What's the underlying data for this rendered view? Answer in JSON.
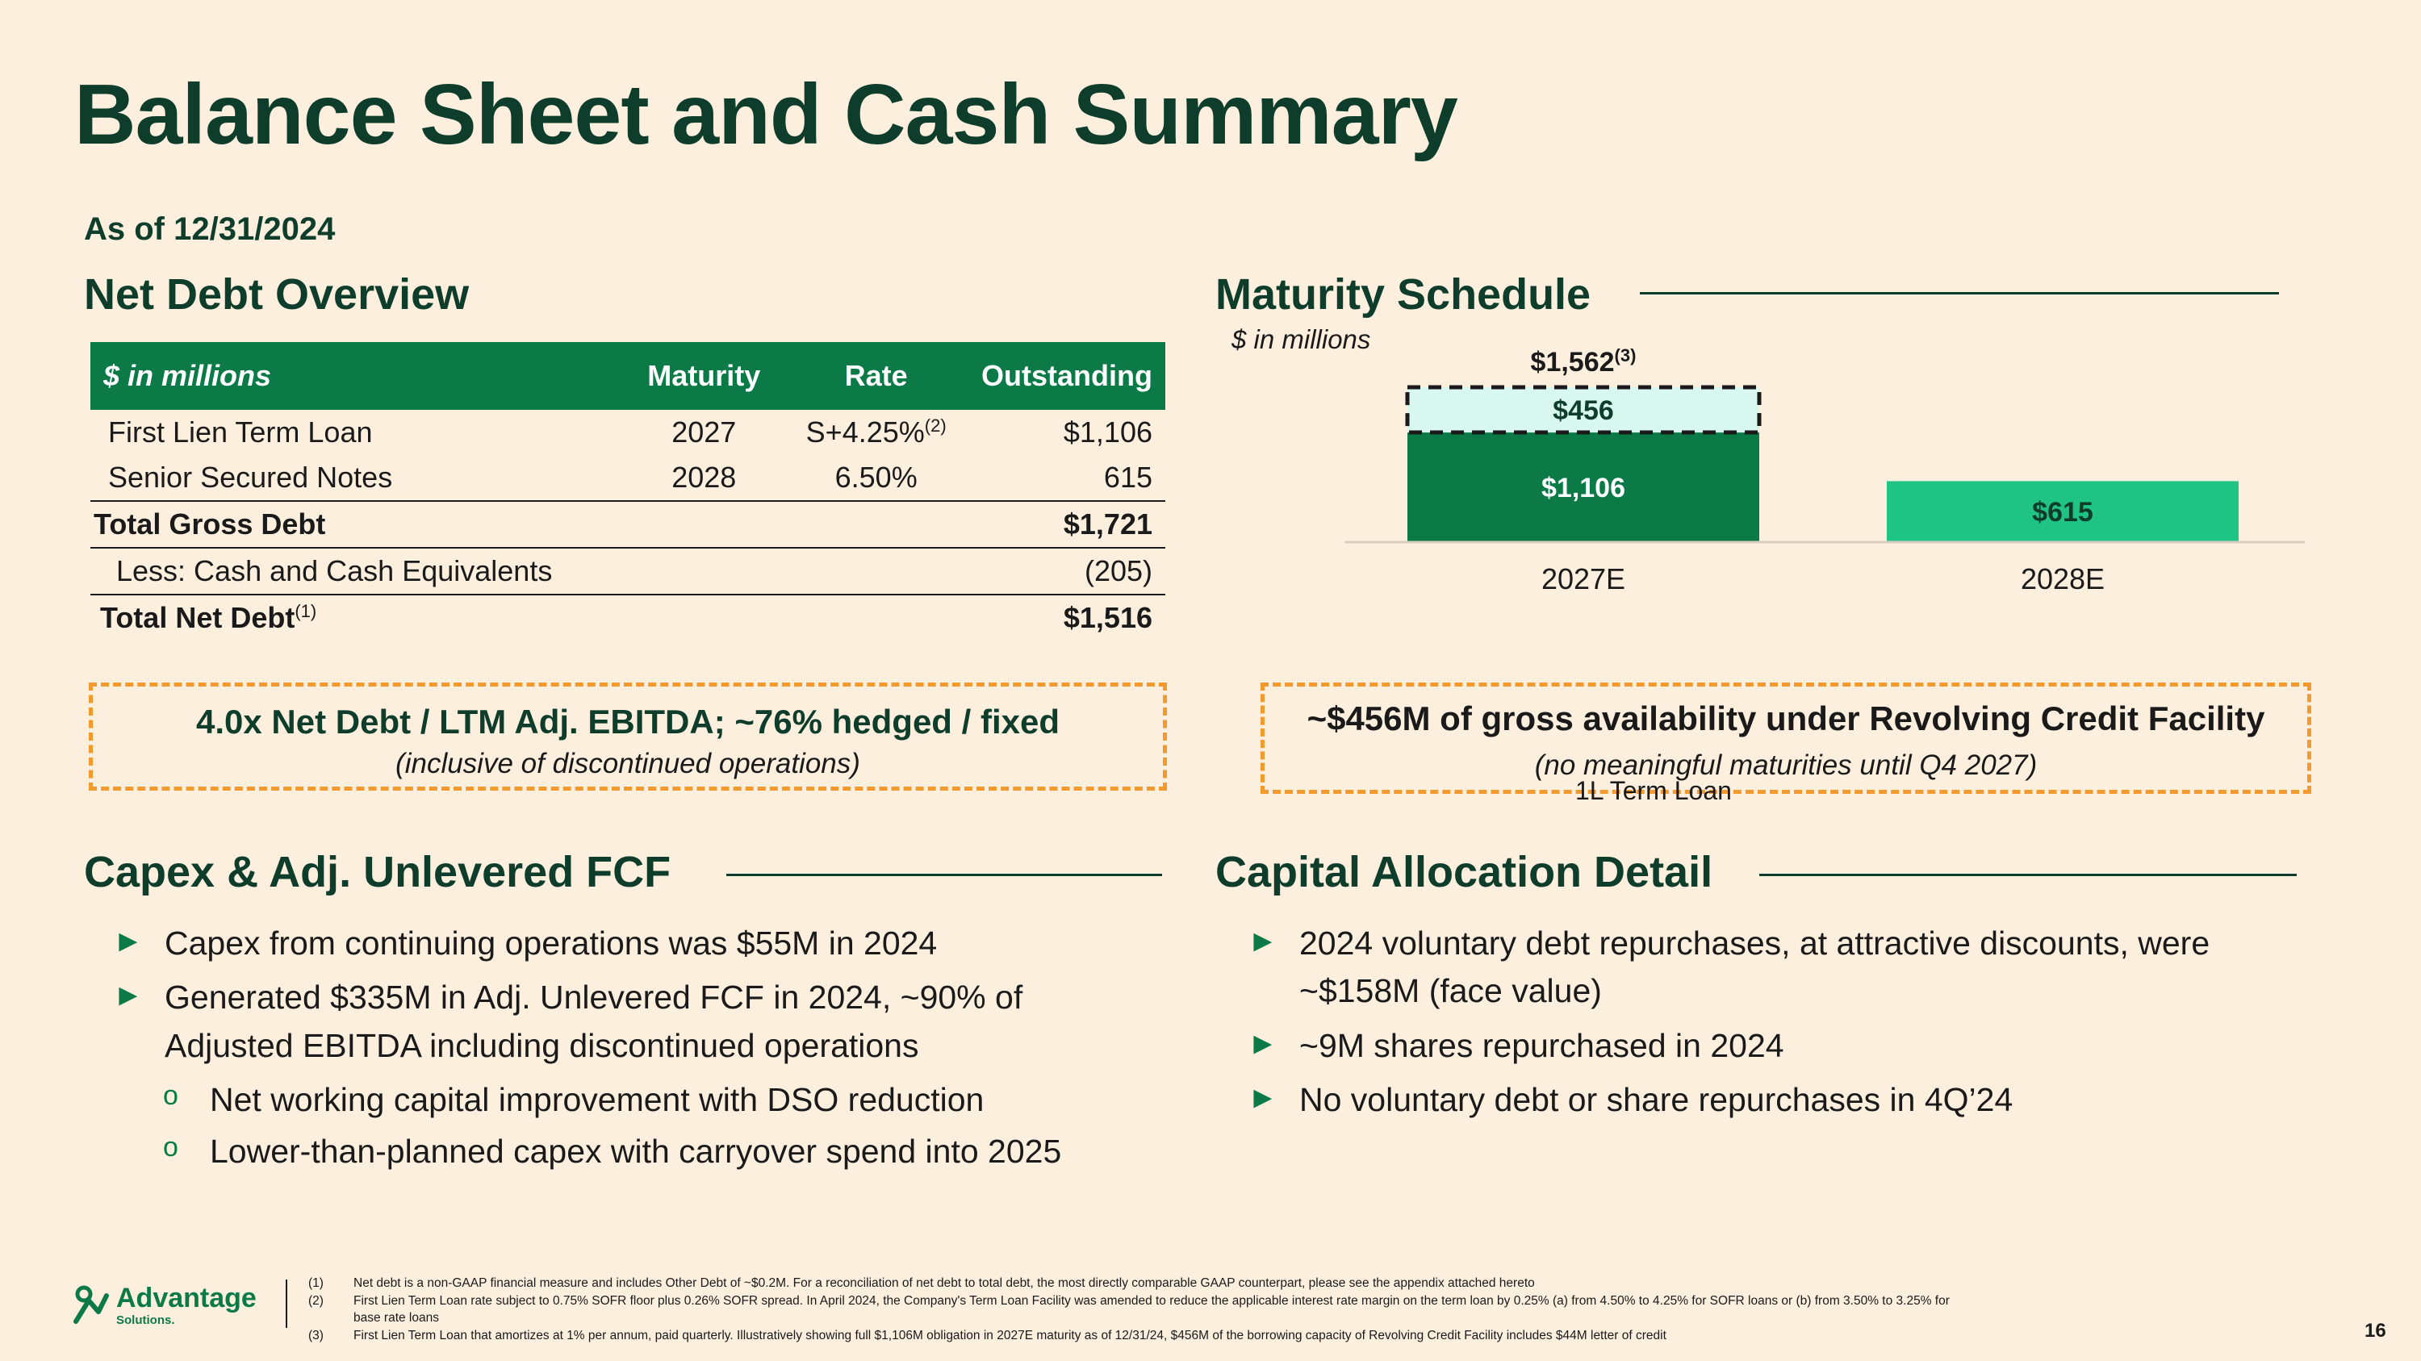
{
  "title": "Balance Sheet and Cash Summary",
  "as_of": "As of 12/31/2024",
  "net_debt": {
    "heading": "Net Debt Overview",
    "columns": [
      "$ in millions",
      "Maturity",
      "Rate",
      "Outstanding"
    ],
    "rows": [
      {
        "name": "First Lien Term Loan",
        "maturity": "2027",
        "rate": "S+4.25%",
        "rate_note": "(2)",
        "outstanding": "$1,106"
      },
      {
        "name": "Senior Secured Notes",
        "maturity": "2028",
        "rate": "6.50%",
        "outstanding": "615"
      },
      {
        "name": "Total Gross Debt",
        "outstanding": "$1,721"
      },
      {
        "name": "Less: Cash and Cash Equivalents",
        "outstanding": "(205)"
      },
      {
        "name": "Total Net Debt",
        "name_note": "(1)",
        "outstanding": "$1,516"
      }
    ],
    "callout_main": "4.0x Net Debt / LTM Adj. EBITDA; ~76% hedged / fixed",
    "callout_sub": "(inclusive of discontinued operations)"
  },
  "maturity": {
    "heading": "Maturity Schedule",
    "units": "$ in millions",
    "total_label": "$1,562",
    "total_note": "(3)",
    "legend_label": "1L Term Loan",
    "callout_main": "~$456M of gross availability under Revolving Credit Facility",
    "callout_sub": "(no meaningful maturities until Q4 2027)"
  },
  "chart_data": {
    "type": "bar",
    "stacked": true,
    "categories": [
      "2027E",
      "2028E"
    ],
    "series": [
      {
        "name": "",
        "values": [
          1106,
          615
        ],
        "labels": [
          "$1,106",
          "$615"
        ],
        "colors": [
          "#0b7a47",
          "#1fc384"
        ]
      },
      {
        "name": "",
        "values": [
          456,
          0
        ],
        "labels": [
          "$456",
          ""
        ],
        "colors": [
          "#d8f7ee",
          "#d8f7ee"
        ]
      }
    ],
    "totals": [
      1562,
      615
    ],
    "ylim": [
      0,
      1562
    ]
  },
  "capex": {
    "heading": "Capex & Adj. Unlevered FCF",
    "bullets": [
      "Capex from continuing operations was $55M in 2024",
      "Generated $335M in Adj. Unlevered FCF in 2024, ~90% of Adjusted EBITDA including discontinued operations"
    ],
    "sub_bullets": [
      "Net working capital improvement with DSO reduction",
      "Lower-than-planned capex with carryover spend into 2025"
    ]
  },
  "capital": {
    "heading": "Capital Allocation Detail",
    "bullets": [
      "2024 voluntary debt repurchases, at attractive discounts, were ~$158M (face value)",
      "~9M shares repurchased in 2024",
      "No voluntary debt or share repurchases in 4Q’24"
    ]
  },
  "bullet_glyph": "►",
  "sub_glyph": "o",
  "footnotes": [
    {
      "n": "(1)",
      "text": "Net debt is a non-GAAP financial measure and includes Other Debt of ~$0.2M. For a reconciliation of net debt to total debt, the most directly comparable GAAP counterpart, please see the appendix attached hereto"
    },
    {
      "n": "(2)",
      "text": "First Lien Term Loan rate subject to 0.75% SOFR floor plus 0.26% SOFR spread. In April 2024, the Company's Term Loan Facility was amended to reduce the applicable interest rate margin on the term loan by 0.25% (a) from 4.50% to 4.25% for SOFR loans or (b) from 3.50% to 3.25% for base rate loans"
    },
    {
      "n": "(3)",
      "text": "First Lien Term Loan that amortizes at 1% per annum, paid quarterly. Illustratively showing full $1,106M obligation in 2027E maturity as of 12/31/24, $456M of the borrowing capacity of Revolving Credit Facility includes $44M letter of credit"
    }
  ],
  "logo": {
    "name": "Advantage",
    "sub": "Solutions."
  },
  "page_number": "16"
}
